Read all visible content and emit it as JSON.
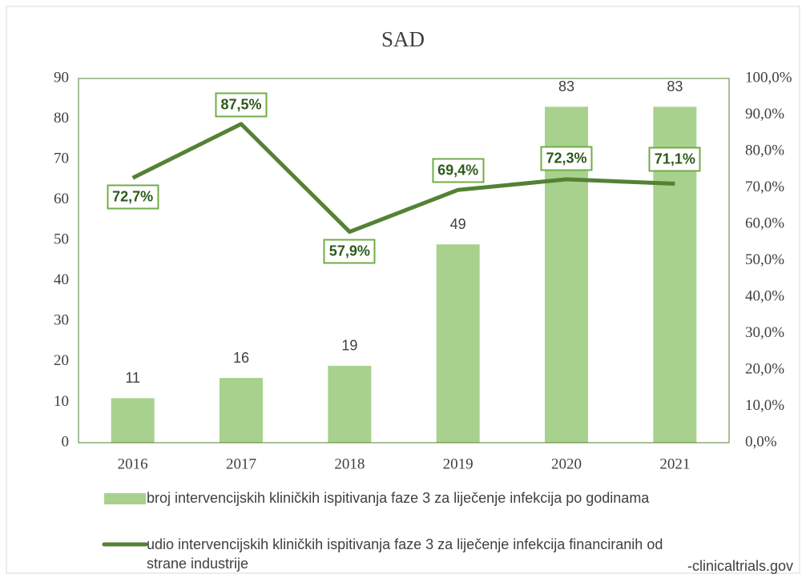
{
  "chart_data": {
    "type": "bar_line",
    "title": "SAD",
    "categories": [
      "2016",
      "2017",
      "2018",
      "2019",
      "2020",
      "2021"
    ],
    "series": [
      {
        "name": "broj intervencijskih kliničkih ispitivanja faze 3 za liječenje infekcija po godinama",
        "type": "bar",
        "color": "#a9d18e",
        "values": [
          11,
          16,
          19,
          49,
          83,
          83
        ]
      },
      {
        "name": "udio intervencijskih kliničkih ispitivanja faze 3 za liječenje infekcija financiranih od strane industrije",
        "type": "line",
        "axis": "y2",
        "color": "#548235",
        "values": [
          72.7,
          87.5,
          57.9,
          69.4,
          72.3,
          71.1
        ],
        "value_labels": [
          "72,7%",
          "87,5%",
          "57,9%",
          "69,4%",
          "72,3%",
          "71,1%"
        ]
      }
    ],
    "ylim": [
      0,
      90
    ],
    "yticks": [
      0,
      10,
      20,
      30,
      40,
      50,
      60,
      70,
      80,
      90
    ],
    "y2lim": [
      0,
      100
    ],
    "y2ticks": [
      {
        "value": 0,
        "label": "0,0%"
      },
      {
        "value": 10,
        "label": "10,0%"
      },
      {
        "value": 20,
        "label": "20,0%"
      },
      {
        "value": 30,
        "label": "30,0%"
      },
      {
        "value": 40,
        "label": "40,0%"
      },
      {
        "value": 50,
        "label": "50,0%"
      },
      {
        "value": 60,
        "label": "60,0%"
      },
      {
        "value": 70,
        "label": "70,0%"
      },
      {
        "value": 80,
        "label": "80,0%"
      },
      {
        "value": 90,
        "label": "90,0%"
      },
      {
        "value": 100,
        "label": "100,0%"
      }
    ],
    "annotation": "-clinicaltrials.gov"
  }
}
